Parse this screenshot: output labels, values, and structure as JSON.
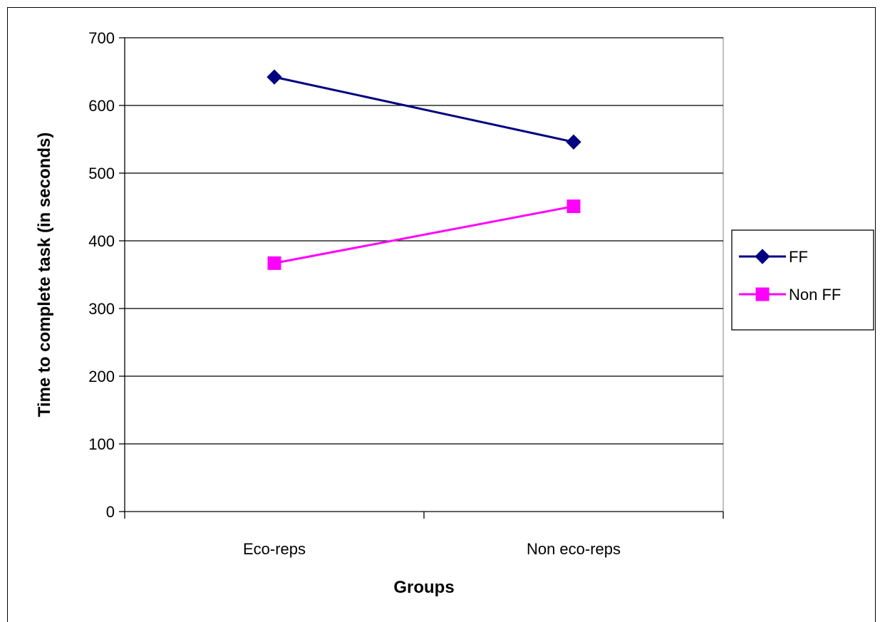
{
  "chart_data": {
    "type": "line",
    "title": "",
    "xlabel": "Groups",
    "ylabel": "Time to complete task (in seconds)",
    "categories": [
      "Eco-reps",
      "Non eco-reps"
    ],
    "ylim": [
      0,
      700
    ],
    "yticks": [
      0,
      100,
      200,
      300,
      400,
      500,
      600,
      700
    ],
    "grid": true,
    "legend_position": "right",
    "series": [
      {
        "name": "FF",
        "values": [
          642,
          546
        ],
        "color": "#000080",
        "marker": "diamond"
      },
      {
        "name": "Non FF",
        "values": [
          367,
          451
        ],
        "color": "#FF00FF",
        "marker": "square"
      }
    ]
  }
}
